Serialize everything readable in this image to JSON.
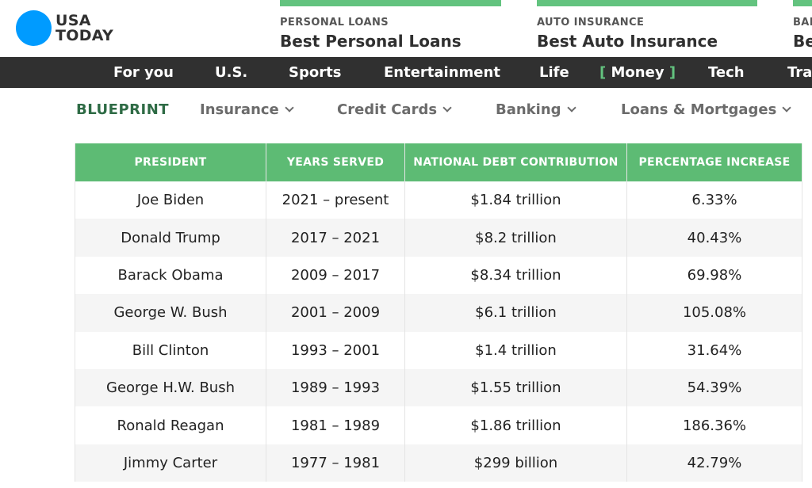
{
  "logo": {
    "line1": "USA",
    "line2": "TODAY"
  },
  "promos": [
    {
      "label": "PERSONAL LOANS",
      "title": "Best Personal Loans"
    },
    {
      "label": "AUTO INSURANCE",
      "title": "Best Auto Insurance"
    },
    {
      "label": "BAN",
      "title": "Be"
    }
  ],
  "nav": {
    "items": [
      "For you",
      "U.S.",
      "Sports",
      "Entertainment",
      "Life",
      "Money",
      "Tech",
      "Tra"
    ],
    "active": "Money",
    "bracket_open": "[",
    "bracket_close": "]"
  },
  "subnav": {
    "brand": "BLUEPRINT",
    "items": [
      "Insurance",
      "Credit Cards",
      "Banking",
      "Loans & Mortgages"
    ]
  },
  "table": {
    "headers": [
      "PRESIDENT",
      "YEARS SERVED",
      "NATIONAL DEBT CONTRIBUTION",
      "PERCENTAGE INCREASE"
    ],
    "rows": [
      [
        "Joe Biden",
        "2021 – present",
        "$1.84 trillion",
        "6.33%"
      ],
      [
        "Donald Trump",
        "2017 – 2021",
        "$8.2 trillion",
        "40.43%"
      ],
      [
        "Barack Obama",
        "2009 – 2017",
        "$8.34 trillion",
        "69.98%"
      ],
      [
        "George W. Bush",
        "2001 – 2009",
        "$6.1 trillion",
        "105.08%"
      ],
      [
        "Bill Clinton",
        "1993 – 2001",
        "$1.4 trillion",
        "31.64%"
      ],
      [
        "George H.W. Bush",
        "1989 – 1993",
        "$1.55 trillion",
        "54.39%"
      ],
      [
        "Ronald Reagan",
        "1981 – 1989",
        "$1.86 trillion",
        "186.36%"
      ],
      [
        "Jimmy Carter",
        "1977 – 1981",
        "$299 billion",
        "42.79%"
      ]
    ]
  },
  "colors": {
    "brand_blue": "#009bff",
    "accent_green": "#5dbb74",
    "nav_bg": "#303030",
    "blueprint_green": "#2e6b45"
  },
  "icons": {
    "logo": "usa-today-circle",
    "dropdown": "chevron-down-icon"
  }
}
